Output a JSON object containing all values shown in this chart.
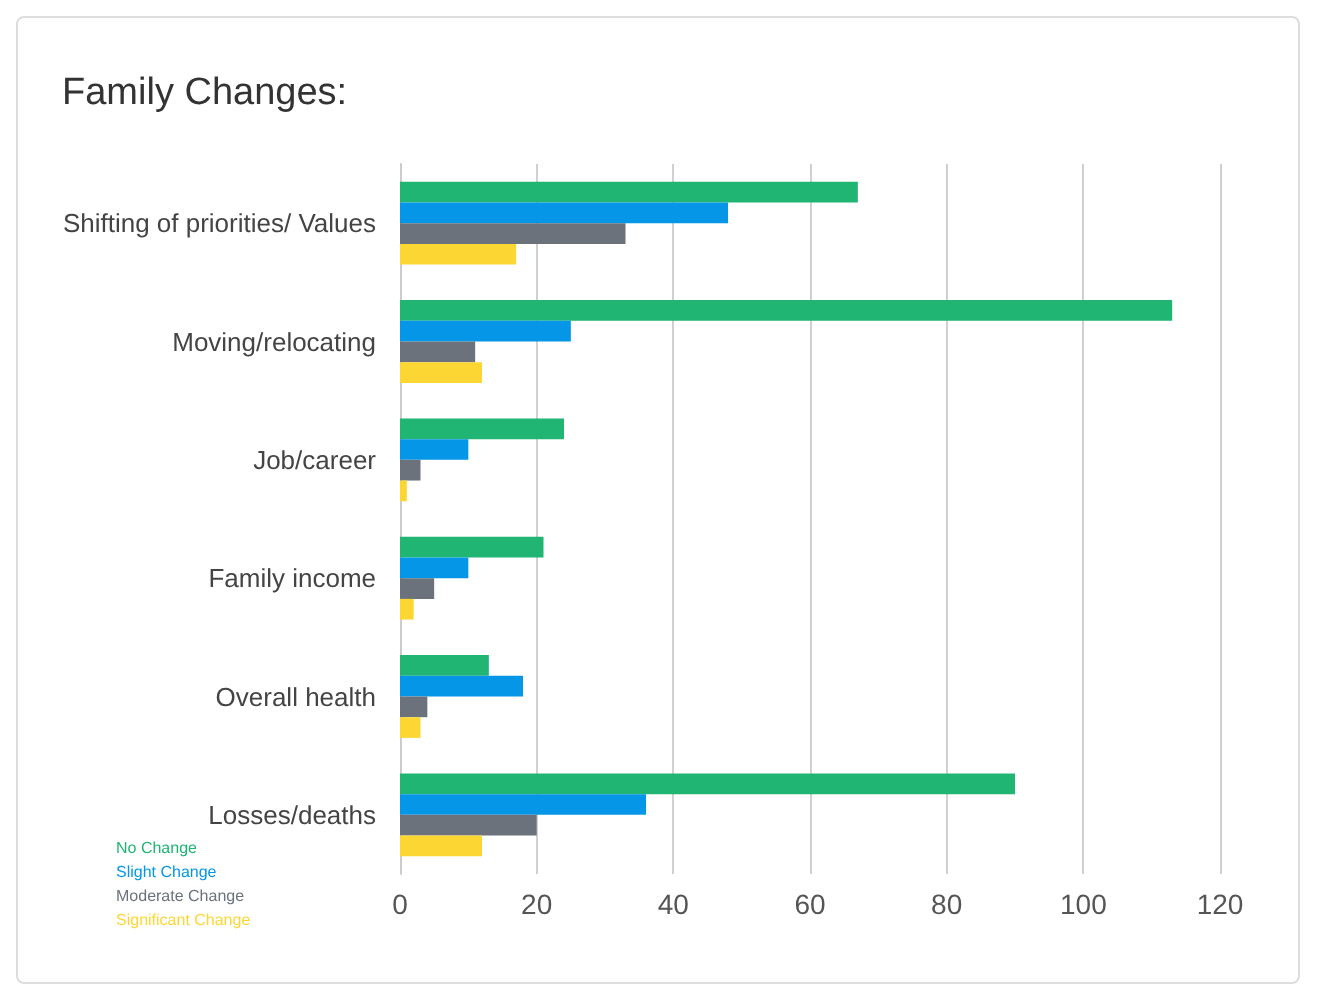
{
  "chart_data": {
    "type": "bar",
    "orientation": "horizontal",
    "title": "Family Changes:",
    "categories": [
      "Shifting of priorities/ Values",
      "Moving/relocating",
      "Job/career",
      "Family income",
      "Overall health",
      "Losses/deaths"
    ],
    "series": [
      {
        "name": "No Change",
        "color": "#21b573",
        "values": [
          67,
          113,
          24,
          21,
          13,
          90
        ]
      },
      {
        "name": "Slight Change",
        "color": "#0596e8",
        "values": [
          48,
          25,
          10,
          10,
          18,
          36
        ]
      },
      {
        "name": "Moderate Change",
        "color": "#6b727c",
        "values": [
          33,
          11,
          3,
          5,
          4,
          20
        ]
      },
      {
        "name": "Significant Change",
        "color": "#fcd734",
        "values": [
          17,
          12,
          1,
          2,
          3,
          12
        ]
      }
    ],
    "xlim": [
      0,
      120
    ],
    "xticks": [
      0,
      20,
      40,
      60,
      80,
      100,
      120
    ],
    "grid": "x",
    "legend": "bottom left"
  }
}
